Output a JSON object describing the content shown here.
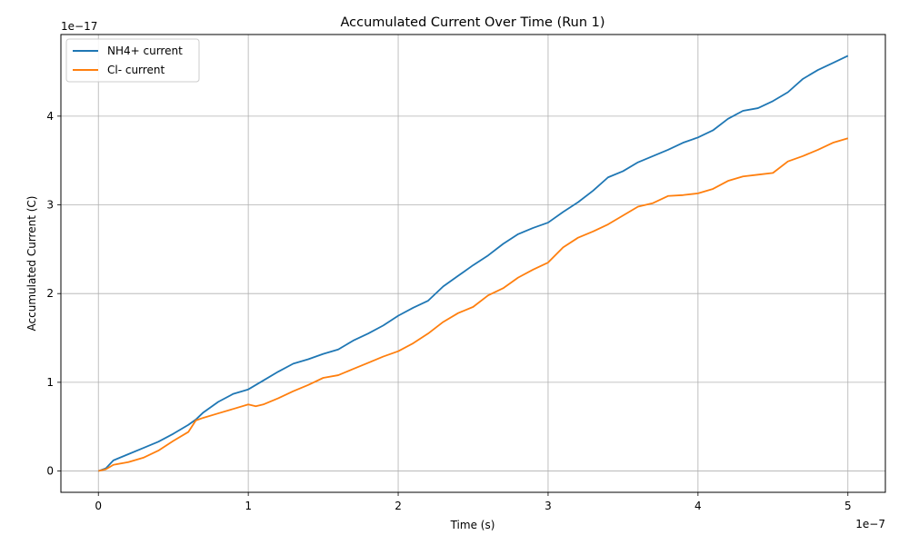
{
  "chart_data": {
    "type": "line",
    "title": "Accumulated Current Over Time (Run 1)",
    "xlabel": "Time (s)",
    "ylabel": "Accumulated Current (C)",
    "x_offset_label": "1e−7",
    "y_offset_label": "1e−17",
    "xlim": [
      -0.25,
      5.25
    ],
    "ylim": [
      -0.24,
      4.92
    ],
    "x_ticks": [
      0,
      1,
      2,
      3,
      4,
      5
    ],
    "x_tick_labels": [
      "0",
      "1",
      "2",
      "3",
      "4",
      "5"
    ],
    "y_ticks": [
      0,
      1,
      2,
      3,
      4
    ],
    "y_tick_labels": [
      "0",
      "1",
      "2",
      "3",
      "4"
    ],
    "grid": true,
    "legend_position": "top-left",
    "series": [
      {
        "name": "NH4+ current",
        "color": "#1f77b4",
        "x": [
          0,
          0.05,
          0.1,
          0.2,
          0.3,
          0.4,
          0.5,
          0.6,
          0.65,
          0.7,
          0.8,
          0.9,
          1.0,
          1.1,
          1.2,
          1.3,
          1.4,
          1.5,
          1.6,
          1.7,
          1.8,
          1.9,
          2.0,
          2.1,
          2.2,
          2.3,
          2.4,
          2.5,
          2.6,
          2.7,
          2.8,
          2.9,
          3.0,
          3.1,
          3.2,
          3.3,
          3.4,
          3.5,
          3.6,
          3.7,
          3.8,
          3.9,
          4.0,
          4.1,
          4.2,
          4.3,
          4.4,
          4.5,
          4.6,
          4.7,
          4.8,
          4.9,
          5.0
        ],
        "y": [
          0,
          0.03,
          0.12,
          0.19,
          0.26,
          0.33,
          0.42,
          0.52,
          0.58,
          0.66,
          0.78,
          0.87,
          0.92,
          1.02,
          1.12,
          1.21,
          1.26,
          1.32,
          1.37,
          1.47,
          1.55,
          1.64,
          1.75,
          1.84,
          1.92,
          2.08,
          2.2,
          2.32,
          2.43,
          2.56,
          2.67,
          2.74,
          2.8,
          2.92,
          3.03,
          3.16,
          3.31,
          3.38,
          3.48,
          3.55,
          3.62,
          3.7,
          3.76,
          3.84,
          3.97,
          4.06,
          4.09,
          4.17,
          4.27,
          4.42,
          4.52,
          4.6,
          4.68
        ]
      },
      {
        "name": "Cl- current",
        "color": "#ff7f0e",
        "x": [
          0,
          0.05,
          0.1,
          0.2,
          0.3,
          0.4,
          0.5,
          0.6,
          0.65,
          0.7,
          0.8,
          0.9,
          1.0,
          1.05,
          1.1,
          1.2,
          1.3,
          1.4,
          1.5,
          1.6,
          1.7,
          1.8,
          1.9,
          2.0,
          2.1,
          2.2,
          2.3,
          2.4,
          2.5,
          2.6,
          2.7,
          2.8,
          2.9,
          3.0,
          3.1,
          3.2,
          3.3,
          3.4,
          3.5,
          3.6,
          3.7,
          3.8,
          3.9,
          4.0,
          4.1,
          4.2,
          4.3,
          4.4,
          4.5,
          4.6,
          4.7,
          4.8,
          4.9,
          5.0
        ],
        "y": [
          0,
          0.02,
          0.07,
          0.1,
          0.15,
          0.23,
          0.34,
          0.44,
          0.57,
          0.6,
          0.65,
          0.7,
          0.75,
          0.73,
          0.75,
          0.82,
          0.9,
          0.97,
          1.05,
          1.08,
          1.15,
          1.22,
          1.29,
          1.35,
          1.44,
          1.55,
          1.68,
          1.78,
          1.85,
          1.98,
          2.06,
          2.18,
          2.27,
          2.35,
          2.52,
          2.63,
          2.7,
          2.78,
          2.88,
          2.98,
          3.02,
          3.1,
          3.11,
          3.13,
          3.18,
          3.27,
          3.32,
          3.34,
          3.36,
          3.49,
          3.55,
          3.62,
          3.7,
          3.75
        ]
      }
    ]
  }
}
